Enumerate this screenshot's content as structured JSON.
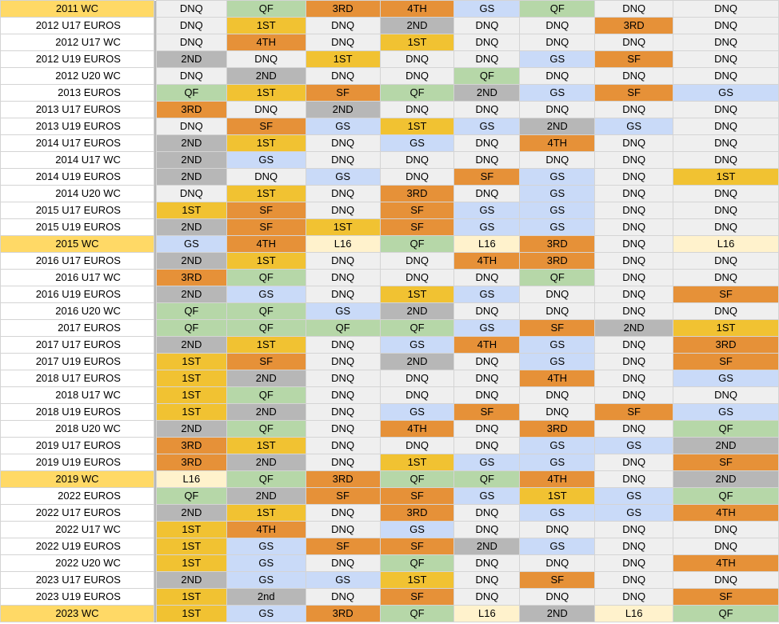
{
  "colors": {
    "DNQ": "#efefef",
    "QF": "#b6d7a8",
    "3RD": "#e69138",
    "4TH": "#e69138",
    "SF": "#e69138",
    "GS": "#c9daf8",
    "1ST": "#f1c232",
    "2ND": "#b7b7b7",
    "2nd": "#b7b7b7",
    "L16": "#fff2cc",
    "wc_label": "#ffd966"
  },
  "rows": [
    {
      "label": "2011 WC",
      "wc": true,
      "cells": [
        "DNQ",
        "QF",
        "3RD",
        "4TH",
        "GS",
        "QF",
        "DNQ",
        "DNQ"
      ]
    },
    {
      "label": "2012 U17 EUROS",
      "wc": false,
      "cells": [
        "DNQ",
        "1ST",
        "DNQ",
        "2ND",
        "DNQ",
        "DNQ",
        "3RD",
        "DNQ"
      ]
    },
    {
      "label": "2012 U17 WC",
      "wc": false,
      "cells": [
        "DNQ",
        "4TH",
        "DNQ",
        "1ST",
        "DNQ",
        "DNQ",
        "DNQ",
        "DNQ"
      ]
    },
    {
      "label": "2012 U19 EUROS",
      "wc": false,
      "cells": [
        "2ND",
        "DNQ",
        "1ST",
        "DNQ",
        "DNQ",
        "GS",
        "SF",
        "DNQ"
      ]
    },
    {
      "label": "2012 U20 WC",
      "wc": false,
      "cells": [
        "DNQ",
        "2ND",
        "DNQ",
        "DNQ",
        "QF",
        "DNQ",
        "DNQ",
        "DNQ"
      ]
    },
    {
      "label": "2013 EUROS",
      "wc": false,
      "cells": [
        "QF",
        "1ST",
        "SF",
        "QF",
        "2ND",
        "GS",
        "SF",
        "GS"
      ]
    },
    {
      "label": "2013 U17 EUROS",
      "wc": false,
      "cells": [
        "3RD",
        "DNQ",
        "2ND",
        "DNQ",
        "DNQ",
        "DNQ",
        "DNQ",
        "DNQ"
      ]
    },
    {
      "label": "2013 U19 EUROS",
      "wc": false,
      "cells": [
        "DNQ",
        "SF",
        "GS",
        "1ST",
        "GS",
        "2ND",
        "GS",
        "DNQ"
      ]
    },
    {
      "label": "2014 U17 EUROS",
      "wc": false,
      "cells": [
        "2ND",
        "1ST",
        "DNQ",
        "GS",
        "DNQ",
        "4TH",
        "DNQ",
        "DNQ"
      ]
    },
    {
      "label": "2014 U17 WC",
      "wc": false,
      "cells": [
        "2ND",
        "GS",
        "DNQ",
        "DNQ",
        "DNQ",
        "DNQ",
        "DNQ",
        "DNQ"
      ]
    },
    {
      "label": "2014 U19 EUROS",
      "wc": false,
      "cells": [
        "2ND",
        "DNQ",
        "GS",
        "DNQ",
        "SF",
        "GS",
        "DNQ",
        "1ST"
      ]
    },
    {
      "label": "2014 U20 WC",
      "wc": false,
      "cells": [
        "DNQ",
        "1ST",
        "DNQ",
        "3RD",
        "DNQ",
        "GS",
        "DNQ",
        "DNQ"
      ]
    },
    {
      "label": "2015 U17 EUROS",
      "wc": false,
      "cells": [
        "1ST",
        "SF",
        "DNQ",
        "SF",
        "GS",
        "GS",
        "DNQ",
        "DNQ"
      ]
    },
    {
      "label": "2015 U19 EUROS",
      "wc": false,
      "cells": [
        "2ND",
        "SF",
        "1ST",
        "SF",
        "GS",
        "GS",
        "DNQ",
        "DNQ"
      ]
    },
    {
      "label": "2015 WC",
      "wc": true,
      "cells": [
        "GS",
        "4TH",
        "L16",
        "QF",
        "L16",
        "3RD",
        "DNQ",
        "L16"
      ]
    },
    {
      "label": "2016 U17 EUROS",
      "wc": false,
      "cells": [
        "2ND",
        "1ST",
        "DNQ",
        "DNQ",
        "4TH",
        "3RD",
        "DNQ",
        "DNQ"
      ]
    },
    {
      "label": "2016 U17 WC",
      "wc": false,
      "cells": [
        "3RD",
        "QF",
        "DNQ",
        "DNQ",
        "DNQ",
        "QF",
        "DNQ",
        "DNQ"
      ]
    },
    {
      "label": "2016 U19 EUROS",
      "wc": false,
      "cells": [
        "2ND",
        "GS",
        "DNQ",
        "1ST",
        "GS",
        "DNQ",
        "DNQ",
        "SF"
      ]
    },
    {
      "label": "2016 U20 WC",
      "wc": false,
      "cells": [
        "QF",
        "QF",
        "GS",
        "2ND",
        "DNQ",
        "DNQ",
        "DNQ",
        "DNQ"
      ]
    },
    {
      "label": "2017 EUROS",
      "wc": false,
      "cells": [
        "QF",
        "QF",
        "QF",
        "QF",
        "GS",
        "SF",
        "2ND",
        "1ST"
      ]
    },
    {
      "label": "2017 U17 EUROS",
      "wc": false,
      "cells": [
        "2ND",
        "1ST",
        "DNQ",
        "GS",
        "4TH",
        "GS",
        "DNQ",
        "3RD"
      ]
    },
    {
      "label": "2017 U19 EUROS",
      "wc": false,
      "cells": [
        "1ST",
        "SF",
        "DNQ",
        "2ND",
        "DNQ",
        "GS",
        "DNQ",
        "SF"
      ]
    },
    {
      "label": "2018 U17 EUROS",
      "wc": false,
      "cells": [
        "1ST",
        "2ND",
        "DNQ",
        "DNQ",
        "DNQ",
        "4TH",
        "DNQ",
        "GS"
      ]
    },
    {
      "label": "2018 U17 WC",
      "wc": false,
      "cells": [
        "1ST",
        "QF",
        "DNQ",
        "DNQ",
        "DNQ",
        "DNQ",
        "DNQ",
        "DNQ"
      ]
    },
    {
      "label": "2018 U19 EUROS",
      "wc": false,
      "cells": [
        "1ST",
        "2ND",
        "DNQ",
        "GS",
        "SF",
        "DNQ",
        "SF",
        "GS"
      ]
    },
    {
      "label": "2018 U20 WC",
      "wc": false,
      "cells": [
        "2ND",
        "QF",
        "DNQ",
        "4TH",
        "DNQ",
        "3RD",
        "DNQ",
        "QF"
      ]
    },
    {
      "label": "2019 U17 EUROS",
      "wc": false,
      "cells": [
        "3RD",
        "1ST",
        "DNQ",
        "DNQ",
        "DNQ",
        "GS",
        "GS",
        "2ND"
      ]
    },
    {
      "label": "2019 U19 EUROS",
      "wc": false,
      "cells": [
        "3RD",
        "2ND",
        "DNQ",
        "1ST",
        "GS",
        "GS",
        "DNQ",
        "SF"
      ]
    },
    {
      "label": "2019 WC",
      "wc": true,
      "cells": [
        "L16",
        "QF",
        "3RD",
        "QF",
        "QF",
        "4TH",
        "DNQ",
        "2ND"
      ]
    },
    {
      "label": "2022 EUROS",
      "wc": false,
      "cells": [
        "QF",
        "2ND",
        "SF",
        "SF",
        "GS",
        "1ST",
        "GS",
        "QF"
      ]
    },
    {
      "label": "2022 U17 EUROS",
      "wc": false,
      "cells": [
        "2ND",
        "1ST",
        "DNQ",
        "3RD",
        "DNQ",
        "GS",
        "GS",
        "4TH"
      ]
    },
    {
      "label": "2022 U17 WC",
      "wc": false,
      "cells": [
        "1ST",
        "4TH",
        "DNQ",
        "GS",
        "DNQ",
        "DNQ",
        "DNQ",
        "DNQ"
      ]
    },
    {
      "label": "2022 U19 EUROS",
      "wc": false,
      "cells": [
        "1ST",
        "GS",
        "SF",
        "SF",
        "2ND",
        "GS",
        "DNQ",
        "DNQ"
      ]
    },
    {
      "label": "2022 U20 WC",
      "wc": false,
      "cells": [
        "1ST",
        "GS",
        "DNQ",
        "QF",
        "DNQ",
        "DNQ",
        "DNQ",
        "4TH"
      ]
    },
    {
      "label": "2023 U17 EUROS",
      "wc": false,
      "cells": [
        "2ND",
        "GS",
        "GS",
        "1ST",
        "DNQ",
        "SF",
        "DNQ",
        "DNQ"
      ]
    },
    {
      "label": "2023 U19 EUROS",
      "wc": false,
      "cells": [
        "1ST",
        "2nd",
        "DNQ",
        "SF",
        "DNQ",
        "DNQ",
        "DNQ",
        "SF"
      ]
    },
    {
      "label": "2023 WC",
      "wc": true,
      "cells": [
        "1ST",
        "GS",
        "3RD",
        "QF",
        "L16",
        "2ND",
        "L16",
        "QF"
      ]
    }
  ]
}
